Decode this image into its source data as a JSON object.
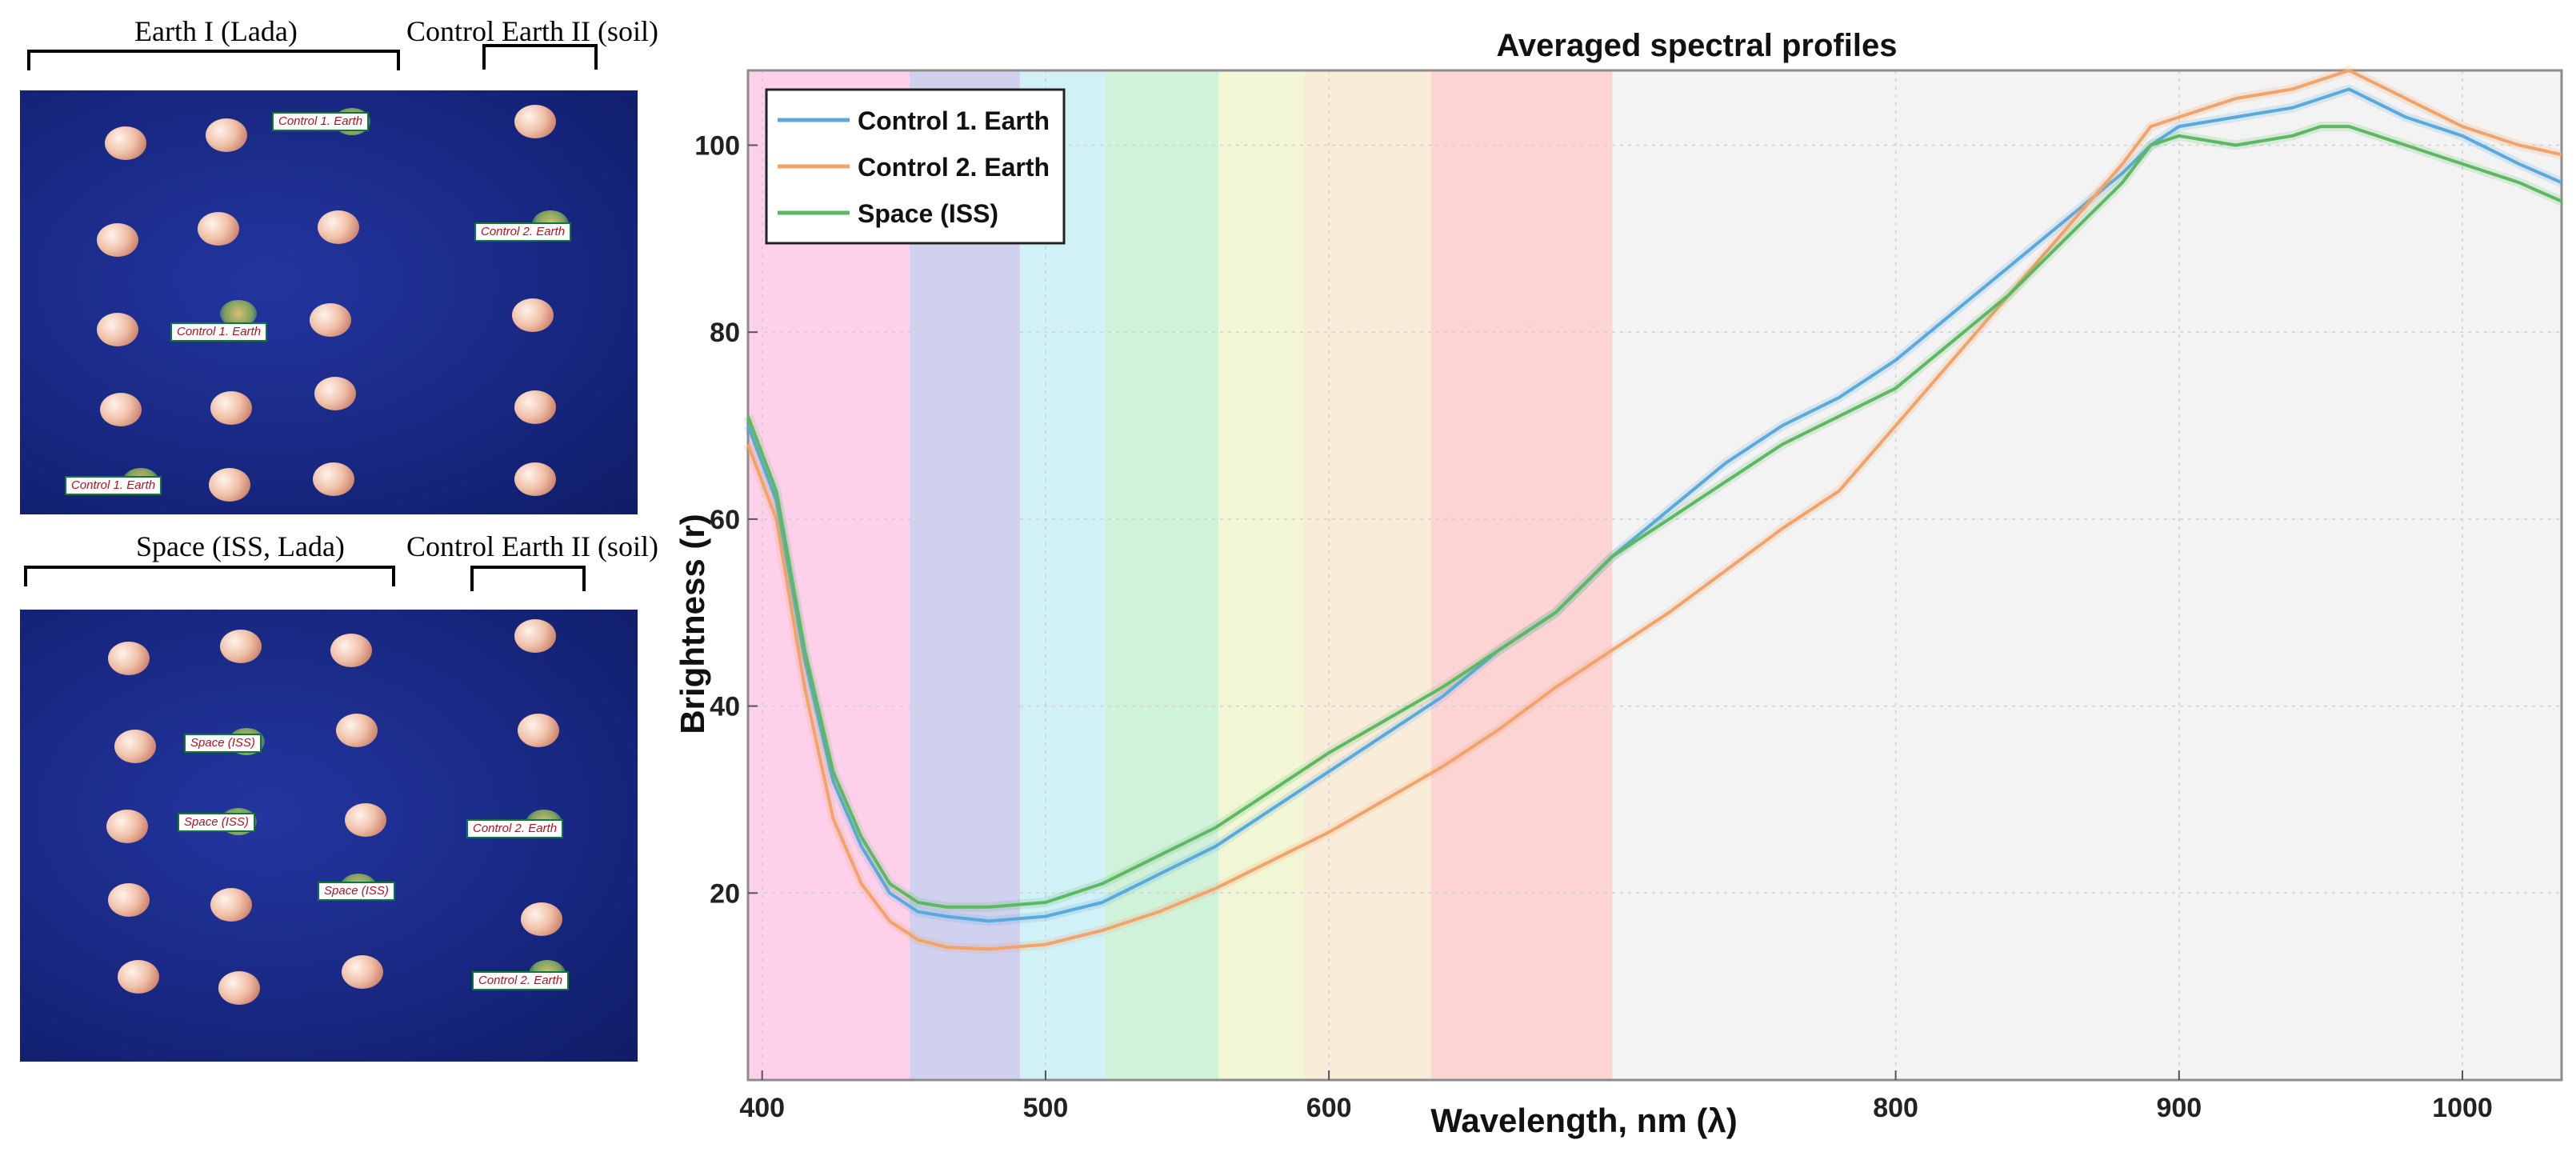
{
  "captions": {
    "top_left": "Earth I  (Lada)",
    "top_right": "Control Earth II (soil)",
    "bottom_left": "Space (ISS, Lada)",
    "bottom_right": "Control Earth II (soil)"
  },
  "top_panel": {
    "tags": [
      "Control 1. Earth",
      "Control 2. Earth",
      "Control 1. Earth",
      "Control 1. Earth"
    ]
  },
  "bottom_panel": {
    "tags": [
      "Space (ISS)",
      "Space (ISS)",
      "Control 2. Earth",
      "Space (ISS)",
      "Control 2. Earth"
    ]
  },
  "colors": {
    "control1": "#5aa9dc",
    "control2": "#f2a36a",
    "space": "#5db864"
  },
  "chart_data": {
    "type": "line",
    "title": "Averaged spectral profiles",
    "xlabel": "Wavelength, nm (λ)",
    "ylabel": "Brightness (r)",
    "xlim": [
      395,
      1035
    ],
    "ylim": [
      0,
      108
    ],
    "xticks": [
      400,
      500,
      600,
      800,
      900,
      1000
    ],
    "yticks": [
      20,
      40,
      60,
      80,
      100
    ],
    "legend_position": "top-left",
    "bands": [
      {
        "from": 395,
        "to": 452,
        "color": "#ffc8e6"
      },
      {
        "from": 452,
        "to": 491,
        "color": "#c8c8ec"
      },
      {
        "from": 491,
        "to": 521,
        "color": "#c8eff4"
      },
      {
        "from": 521,
        "to": 561,
        "color": "#c8f0d2"
      },
      {
        "from": 561,
        "to": 591,
        "color": "#eef4cc"
      },
      {
        "from": 591,
        "to": 636,
        "color": "#f8ead2"
      },
      {
        "from": 636,
        "to": 700,
        "color": "#fccccc"
      },
      {
        "from": 700,
        "to": 1035,
        "color": "#f1f1f1"
      }
    ],
    "x": [
      395,
      405,
      415,
      425,
      435,
      445,
      455,
      465,
      480,
      500,
      520,
      540,
      560,
      580,
      600,
      620,
      640,
      660,
      680,
      700,
      720,
      740,
      760,
      780,
      800,
      820,
      840,
      860,
      880,
      890,
      900,
      920,
      940,
      950,
      960,
      980,
      1000,
      1020,
      1035
    ],
    "series": [
      {
        "name": "Control 1. Earth",
        "color": "#5aa9dc",
        "values": [
          70,
          62,
          45,
          32,
          25,
          20,
          18,
          17.5,
          17,
          17.5,
          19,
          22,
          25,
          29,
          33,
          37,
          41,
          46,
          50,
          56,
          61,
          66,
          70,
          73,
          77,
          82,
          87,
          92,
          97,
          100,
          102,
          103,
          104,
          105,
          106,
          103,
          101,
          98,
          96
        ]
      },
      {
        "name": "Control 2. Earth",
        "color": "#f2a36a",
        "values": [
          68,
          60,
          42,
          28,
          21,
          17,
          15,
          14.2,
          14,
          14.5,
          16,
          18,
          20.5,
          23.5,
          26.5,
          30,
          33.5,
          37.5,
          42,
          46,
          50,
          54.5,
          59,
          63,
          70,
          77,
          84,
          91,
          98,
          102,
          103,
          105,
          106,
          107,
          108,
          105,
          102,
          100,
          99
        ]
      },
      {
        "name": "Space (ISS)",
        "color": "#5db864",
        "values": [
          71,
          63,
          46,
          33,
          26,
          21,
          19,
          18.5,
          18.5,
          19,
          21,
          24,
          27,
          31,
          35,
          38.5,
          42,
          46,
          50,
          56,
          60,
          64,
          68,
          71,
          74,
          79,
          84,
          90,
          96,
          100,
          101,
          100,
          101,
          102,
          102,
          100,
          98,
          96,
          94
        ]
      }
    ]
  }
}
